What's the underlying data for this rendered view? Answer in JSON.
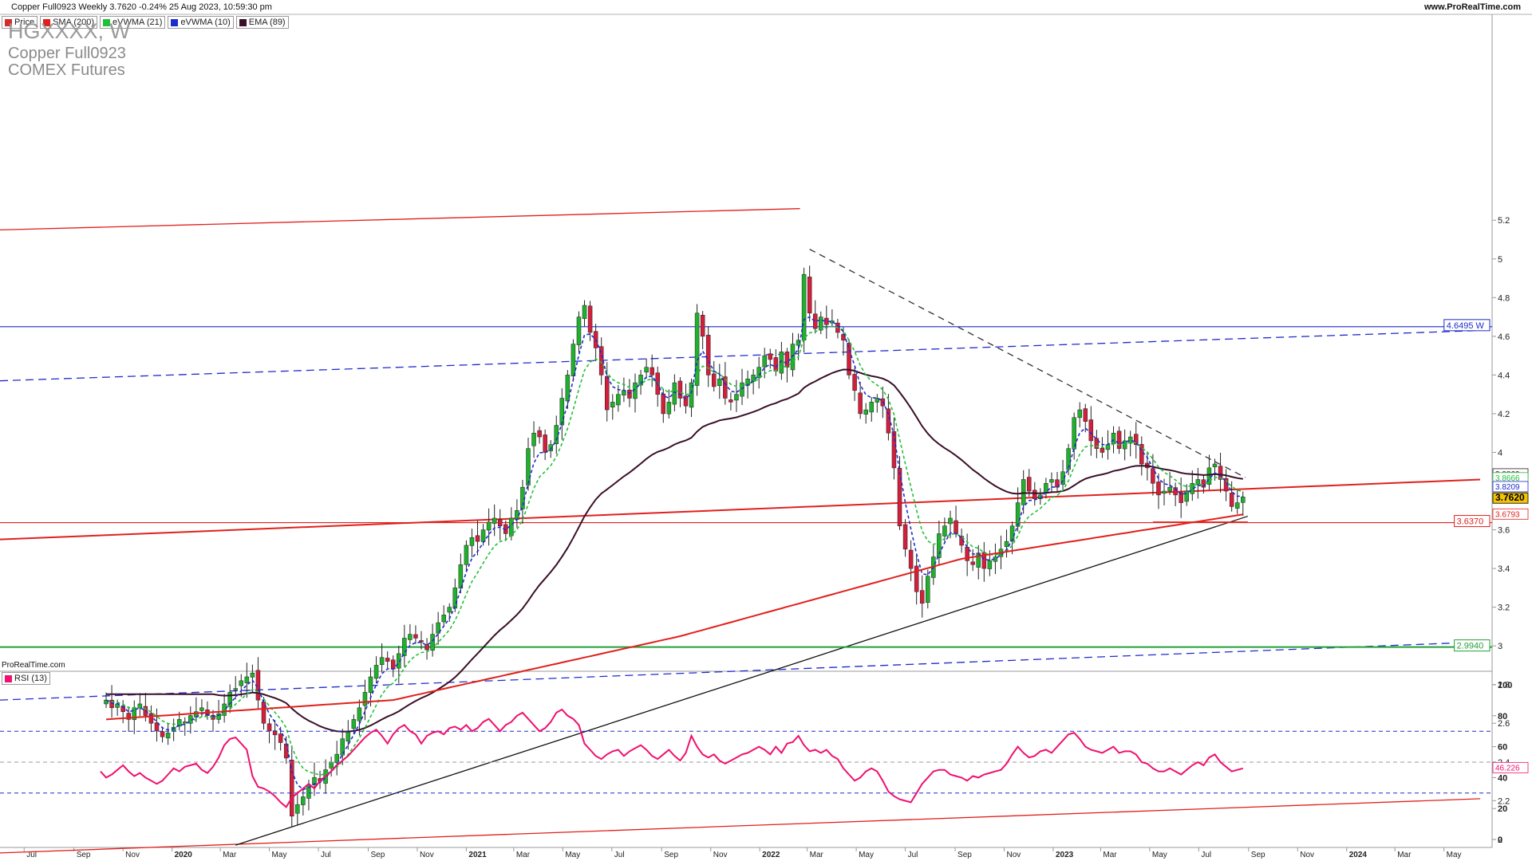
{
  "header": {
    "title": "Copper Full0923 Weekly 3.7620 -0.24% 25 Aug 2023, 10:59:30 pm",
    "url": "www.ProRealTime.com"
  },
  "legend": [
    {
      "label": "Price",
      "color": "#d42c2c"
    },
    {
      "label": "SMA (200)",
      "color": "#e0201c"
    },
    {
      "label": "eVWMA (21)",
      "color": "#22c03a"
    },
    {
      "label": "eVWMA (10)",
      "color": "#1f2ccc"
    },
    {
      "label": "EMA (89)",
      "color": "#3a0f28"
    }
  ],
  "instrument": {
    "symbol": "HGXXXX, W",
    "name": "Copper Full0923",
    "exchange": "COMEX Futures"
  },
  "watermark": "ProRealTime.com",
  "rsi_legend": {
    "label": "RSI (13)",
    "color": "#f0106e"
  },
  "chart_data": [
    {
      "type": "candlestick",
      "title": "Copper Full0923 Weekly",
      "ylim": [
        1.95,
        5.3
      ],
      "y_ticks": [
        "2",
        "2.2",
        "2.4",
        "2.6",
        "2.8",
        "3",
        "3.2",
        "3.4",
        "3.6",
        "4",
        "4.2",
        "4.4",
        "4.6",
        "4.8",
        "5",
        "5.2"
      ],
      "x_ticks": [
        "Jul",
        "Sep",
        "Nov",
        "2020",
        "Mar",
        "May",
        "Jul",
        "Sep",
        "Nov",
        "2021",
        "Mar",
        "May",
        "Jul",
        "Sep",
        "Nov",
        "2022",
        "Mar",
        "May",
        "Jul",
        "Sep",
        "Nov",
        "2023",
        "Mar",
        "May",
        "Jul",
        "Sep",
        "Nov",
        "2024",
        "Mar",
        "May"
      ],
      "x_range": [
        "2019-06-01",
        "2024-06-15"
      ],
      "weekly_close": [
        2.72,
        2.68,
        2.7,
        2.66,
        2.62,
        2.68,
        2.7,
        2.64,
        2.6,
        2.56,
        2.53,
        2.55,
        2.58,
        2.62,
        2.6,
        2.64,
        2.66,
        2.68,
        2.64,
        2.62,
        2.65,
        2.7,
        2.76,
        2.78,
        2.82,
        2.84,
        2.86,
        2.72,
        2.6,
        2.56,
        2.54,
        2.5,
        2.42,
        2.12,
        2.18,
        2.22,
        2.28,
        2.32,
        2.3,
        2.36,
        2.4,
        2.44,
        2.52,
        2.56,
        2.62,
        2.68,
        2.76,
        2.84,
        2.9,
        2.94,
        2.92,
        2.88,
        2.96,
        3.04,
        3.06,
        3.04,
        3.02,
        2.98,
        3.06,
        3.12,
        3.16,
        3.2,
        3.3,
        3.42,
        3.52,
        3.56,
        3.54,
        3.6,
        3.64,
        3.66,
        3.62,
        3.58,
        3.66,
        3.7,
        3.82,
        4.02,
        4.1,
        4.08,
        4.0,
        4.04,
        4.14,
        4.28,
        4.4,
        4.56,
        4.7,
        4.76,
        4.62,
        4.54,
        4.4,
        4.22,
        4.26,
        4.3,
        4.32,
        4.28,
        4.36,
        4.4,
        4.44,
        4.4,
        4.3,
        4.2,
        4.26,
        4.36,
        4.28,
        4.24,
        4.36,
        4.72,
        4.6,
        4.4,
        4.34,
        4.38,
        4.28,
        4.26,
        4.3,
        4.36,
        4.38,
        4.4,
        4.44,
        4.5,
        4.48,
        4.42,
        4.52,
        4.44,
        4.56,
        4.58,
        4.92,
        4.72,
        4.64,
        4.7,
        4.66,
        4.68,
        4.62,
        4.58,
        4.4,
        4.32,
        4.2,
        4.22,
        4.26,
        4.28,
        4.24,
        4.1,
        3.92,
        3.62,
        3.5,
        3.4,
        3.28,
        3.22,
        3.36,
        3.46,
        3.58,
        3.62,
        3.66,
        3.58,
        3.52,
        3.44,
        3.42,
        3.48,
        3.4,
        3.44,
        3.46,
        3.5,
        3.54,
        3.62,
        3.74,
        3.86,
        3.8,
        3.76,
        3.78,
        3.84,
        3.86,
        3.82,
        3.9,
        4.02,
        4.18,
        4.22,
        4.16,
        4.06,
        4.02,
        4.0,
        4.04,
        4.1,
        4.02,
        4.06,
        4.08,
        4.04,
        3.94,
        3.92,
        3.84,
        3.78,
        3.8,
        3.82,
        3.78,
        3.74,
        3.8,
        3.84,
        3.86,
        3.82,
        3.92,
        3.94,
        3.86,
        3.8,
        3.72,
        3.74,
        3.77
      ],
      "overlays": {
        "sma_200": [
          [
            2.62,
            2.58
          ],
          [
            3.0,
            2.75
          ],
          [
            3.5,
            3.3
          ],
          [
            3.74,
            3.66
          ]
        ],
        "evwma_21_last": 3.8666,
        "evwma_10_last": 3.8209,
        "ema_89_last": 3.8869,
        "sma_200_last": 3.6793
      },
      "levels": [
        {
          "value": 4.6495,
          "label": "4.6495 W",
          "color": "#1f2ccc"
        },
        {
          "value": 3.637,
          "label": "3.6370",
          "color": "#e0201c"
        },
        {
          "value": 2.994,
          "label": "2.9940",
          "color": "#22a03a"
        }
      ],
      "last_price": 3.762,
      "price_labels": [
        "3.8869",
        "3.8666",
        "3.8209",
        "3.7620",
        "3.6793"
      ]
    },
    {
      "type": "line",
      "title": "RSI (13)",
      "ylim": [
        0,
        100
      ],
      "y_ticks": [
        "0",
        "20",
        "40",
        "60",
        "80",
        "100"
      ],
      "guide_levels": [
        30,
        50,
        70
      ],
      "last_value_label": "46.226",
      "values": [
        44,
        40,
        42,
        45,
        48,
        44,
        41,
        43,
        40,
        38,
        36,
        38,
        42,
        46,
        44,
        47,
        48,
        49,
        45,
        43,
        47,
        53,
        61,
        65,
        66,
        62,
        58,
        41,
        34,
        33,
        31,
        28,
        24,
        21,
        27,
        30,
        33,
        36,
        33,
        38,
        41,
        44,
        48,
        51,
        54,
        58,
        62,
        66,
        69,
        71,
        67,
        62,
        68,
        72,
        74,
        70,
        68,
        62,
        67,
        69,
        70,
        68,
        72,
        73,
        71,
        74,
        70,
        72,
        76,
        78,
        74,
        70,
        74,
        76,
        80,
        82,
        78,
        74,
        70,
        72,
        76,
        82,
        84,
        80,
        78,
        74,
        62,
        58,
        54,
        52,
        55,
        57,
        58,
        54,
        57,
        59,
        61,
        58,
        54,
        52,
        55,
        58,
        54,
        51,
        56,
        67,
        60,
        55,
        53,
        55,
        51,
        49,
        51,
        53,
        55,
        56,
        58,
        60,
        58,
        55,
        60,
        56,
        62,
        63,
        67,
        61,
        57,
        58,
        56,
        58,
        54,
        52,
        46,
        42,
        38,
        40,
        44,
        46,
        44,
        38,
        31,
        28,
        26,
        25,
        24,
        30,
        36,
        40,
        44,
        45,
        45,
        42,
        41,
        40,
        38,
        41,
        40,
        42,
        43,
        44,
        45,
        49,
        55,
        60,
        56,
        53,
        54,
        57,
        58,
        56,
        60,
        64,
        68,
        69,
        65,
        60,
        58,
        57,
        56,
        58,
        60,
        56,
        57,
        57,
        55,
        50,
        49,
        46,
        44,
        44,
        46,
        44,
        42,
        45,
        48,
        50,
        48,
        53,
        55,
        50,
        47,
        44,
        45,
        46
      ]
    }
  ]
}
